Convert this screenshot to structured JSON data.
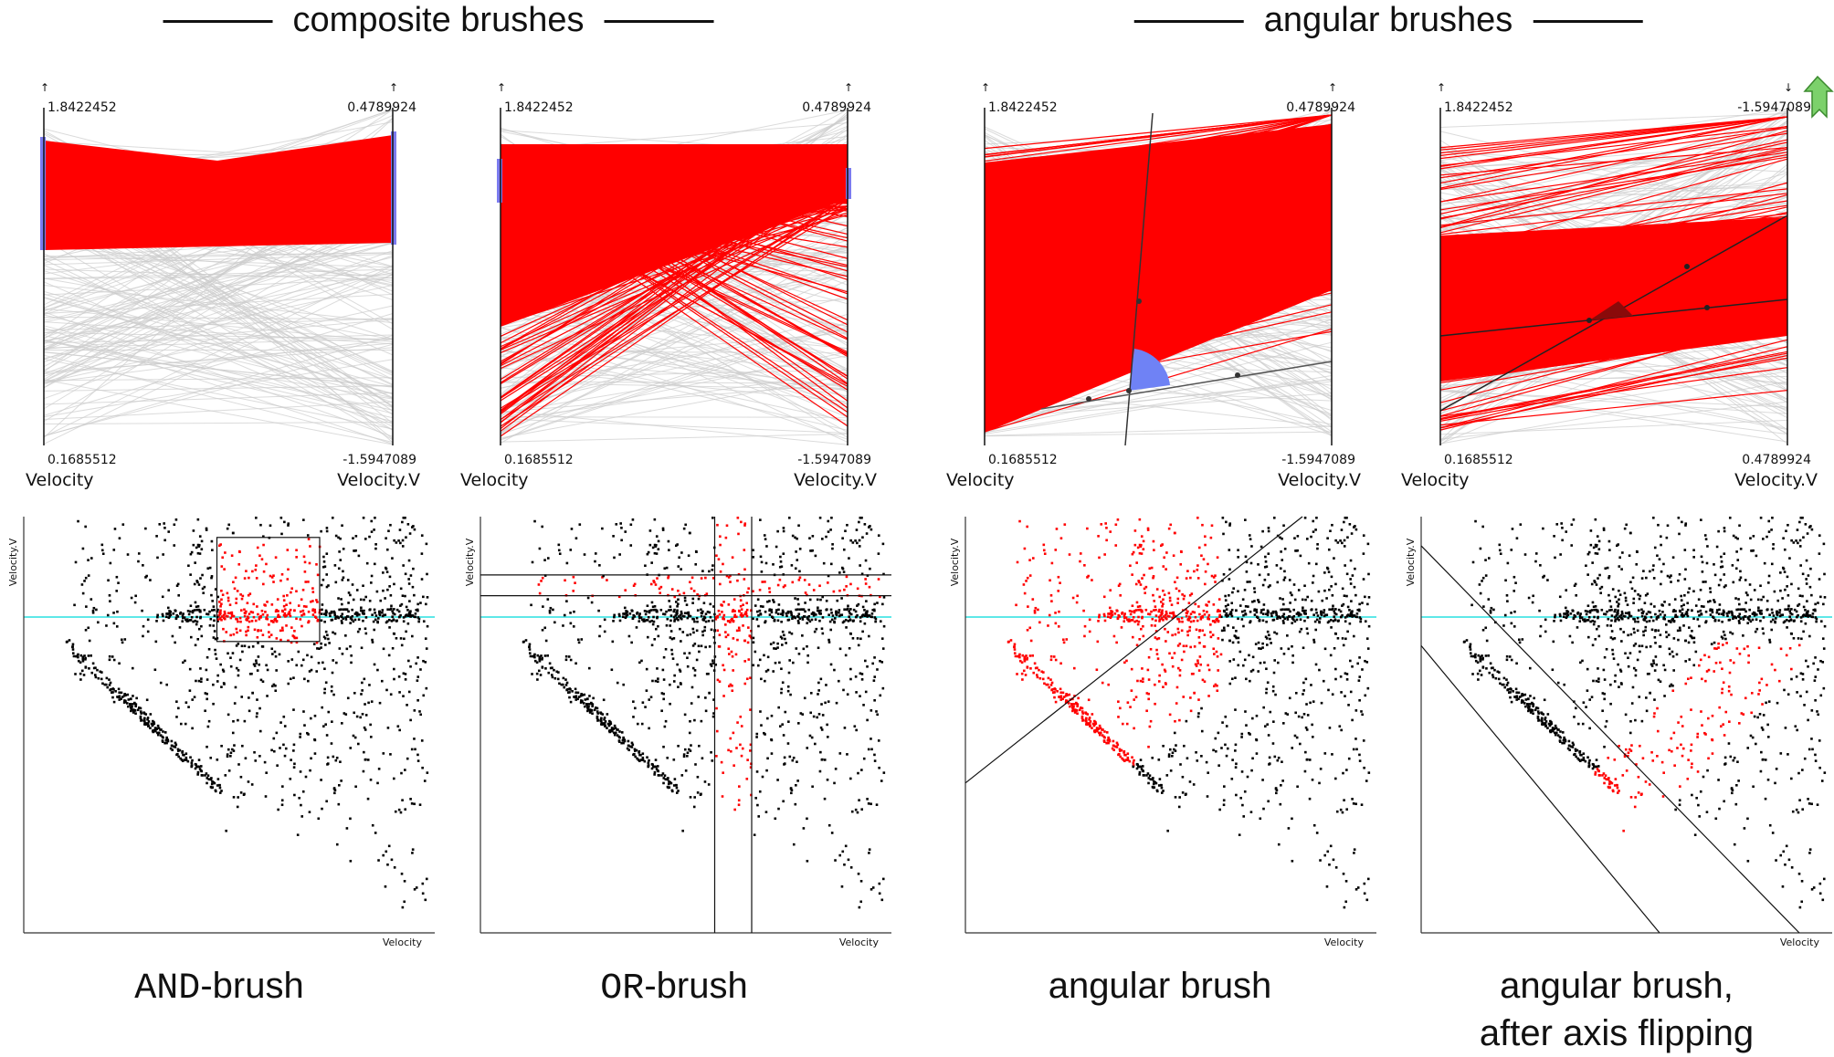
{
  "sections": [
    {
      "title": "composite brushes"
    },
    {
      "title": "angular brushes"
    }
  ],
  "panels": [
    {
      "id": "and",
      "brush": "and",
      "pc": {
        "left_axis": {
          "name": "Velocity",
          "top": "1.8422452",
          "bottom": "0.1685512"
        },
        "right_axis": {
          "name": "Velocity.V",
          "top": "0.4789924",
          "bottom": "-1.5947089",
          "flipped": false
        }
      },
      "scatter": {
        "xlabel": "Velocity",
        "ylabel": "Velocity.V"
      },
      "caption": {
        "mono": "AND",
        "text": "-brush",
        "line2": ""
      }
    },
    {
      "id": "or",
      "brush": "or",
      "pc": {
        "left_axis": {
          "name": "Velocity",
          "top": "1.8422452",
          "bottom": "0.1685512"
        },
        "right_axis": {
          "name": "Velocity.V",
          "top": "0.4789924",
          "bottom": "-1.5947089",
          "flipped": false
        }
      },
      "scatter": {
        "xlabel": "Velocity",
        "ylabel": "Velocity.V"
      },
      "caption": {
        "mono": "OR",
        "text": "-brush",
        "line2": ""
      }
    },
    {
      "id": "angular",
      "brush": "angular",
      "pc": {
        "left_axis": {
          "name": "Velocity",
          "top": "1.8422452",
          "bottom": "0.1685512"
        },
        "right_axis": {
          "name": "Velocity.V",
          "top": "0.4789924",
          "bottom": "-1.5947089",
          "flipped": false
        }
      },
      "scatter": {
        "xlabel": "Velocity",
        "ylabel": "Velocity.V"
      },
      "caption": {
        "mono": "",
        "text": "angular brush",
        "line2": ""
      }
    },
    {
      "id": "angular-flipped",
      "brush": "angular-flipped",
      "pc": {
        "left_axis": {
          "name": "Velocity",
          "top": "1.8422452",
          "bottom": "0.1685512"
        },
        "right_axis": {
          "name": "Velocity.V",
          "top": "-1.5947089",
          "bottom": "0.4789924",
          "flipped": true
        }
      },
      "scatter": {
        "xlabel": "Velocity",
        "ylabel": "Velocity.V"
      },
      "caption": {
        "mono": "",
        "text": "angular brush,",
        "line2": "after axis flipping"
      }
    }
  ],
  "colors": {
    "selected": "#ff0000",
    "unselected": "#cccccc",
    "brush": "#7b7bf0",
    "angle": "#6f82f5",
    "angle_dark": "#8a0a0a",
    "reference_line": "#29e0e0",
    "point": "#000000"
  }
}
